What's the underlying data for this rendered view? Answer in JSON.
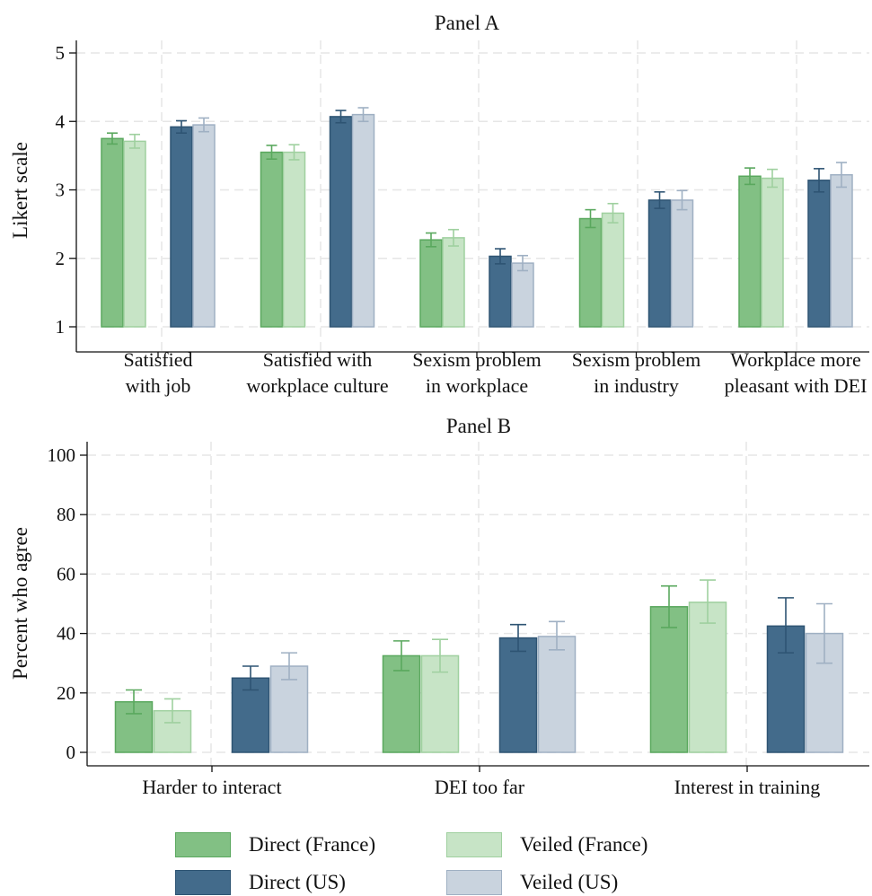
{
  "figure": {
    "series": [
      {
        "name": "Direct (France)",
        "fill": "#82c084",
        "stroke": "#5aa85e"
      },
      {
        "name": "Veiled (France)",
        "fill": "#c7e4c6",
        "stroke": "#9fd09f"
      },
      {
        "name": "Direct (US)",
        "fill": "#436b8b",
        "stroke": "#2e5473"
      },
      {
        "name": "Veiled (US)",
        "fill": "#c9d3de",
        "stroke": "#9fb0c3"
      }
    ]
  },
  "chart_data": [
    {
      "type": "bar",
      "title": "Panel A",
      "ylabel": "Likert scale",
      "ylim": [
        1,
        5
      ],
      "yticks": [
        1,
        2,
        3,
        4,
        5
      ],
      "grid": true,
      "categories": [
        [
          "Satisfied",
          "with job"
        ],
        [
          "Satisfied with",
          "workplace culture"
        ],
        [
          "Sexism problem",
          "in workplace"
        ],
        [
          "Sexism problem",
          "in industry"
        ],
        [
          "Workplace more",
          "pleasant with DEI"
        ]
      ],
      "series": [
        {
          "name": "Direct (France)",
          "values": [
            3.75,
            3.55,
            2.27,
            2.58,
            3.2
          ],
          "ci": [
            [
              3.67,
              3.83
            ],
            [
              3.45,
              3.65
            ],
            [
              2.17,
              2.37
            ],
            [
              2.45,
              2.71
            ],
            [
              3.08,
              3.32
            ]
          ]
        },
        {
          "name": "Veiled (France)",
          "values": [
            3.71,
            3.55,
            2.3,
            2.66,
            3.17
          ],
          "ci": [
            [
              3.61,
              3.81
            ],
            [
              3.44,
              3.66
            ],
            [
              2.18,
              2.42
            ],
            [
              2.52,
              2.8
            ],
            [
              3.04,
              3.3
            ]
          ]
        },
        {
          "name": "Direct (US)",
          "values": [
            3.92,
            4.07,
            2.03,
            2.85,
            3.14
          ],
          "ci": [
            [
              3.83,
              4.01
            ],
            [
              3.98,
              4.16
            ],
            [
              1.92,
              2.14
            ],
            [
              2.73,
              2.97
            ],
            [
              2.97,
              3.31
            ]
          ]
        },
        {
          "name": "Veiled (US)",
          "values": [
            3.95,
            4.1,
            1.93,
            2.85,
            3.22
          ],
          "ci": [
            [
              3.85,
              4.05
            ],
            [
              4.0,
              4.2
            ],
            [
              1.82,
              2.04
            ],
            [
              2.71,
              2.99
            ],
            [
              3.04,
              3.4
            ]
          ]
        }
      ]
    },
    {
      "type": "bar",
      "title": "Panel B",
      "ylabel": "Percent who agree",
      "ylim": [
        0,
        100
      ],
      "yticks": [
        0,
        20,
        40,
        60,
        80,
        100
      ],
      "grid": true,
      "categories": [
        [
          "Harder to interact"
        ],
        [
          "DEI too far"
        ],
        [
          "Interest in training"
        ]
      ],
      "series": [
        {
          "name": "Direct (France)",
          "values": [
            17,
            32.5,
            49
          ],
          "ci": [
            [
              13,
              21
            ],
            [
              27.5,
              37.5
            ],
            [
              42,
              56
            ]
          ]
        },
        {
          "name": "Veiled (France)",
          "values": [
            14,
            32.5,
            50.5
          ],
          "ci": [
            [
              10,
              18
            ],
            [
              27,
              38
            ],
            [
              43.5,
              58
            ]
          ]
        },
        {
          "name": "Direct (US)",
          "values": [
            25,
            38.5,
            42.5
          ],
          "ci": [
            [
              21,
              29
            ],
            [
              34,
              43
            ],
            [
              33.5,
              52
            ]
          ]
        },
        {
          "name": "Veiled (US)",
          "values": [
            29,
            39,
            40
          ],
          "ci": [
            [
              24.5,
              33.5
            ],
            [
              34.5,
              44
            ],
            [
              30,
              50
            ]
          ]
        }
      ]
    }
  ]
}
